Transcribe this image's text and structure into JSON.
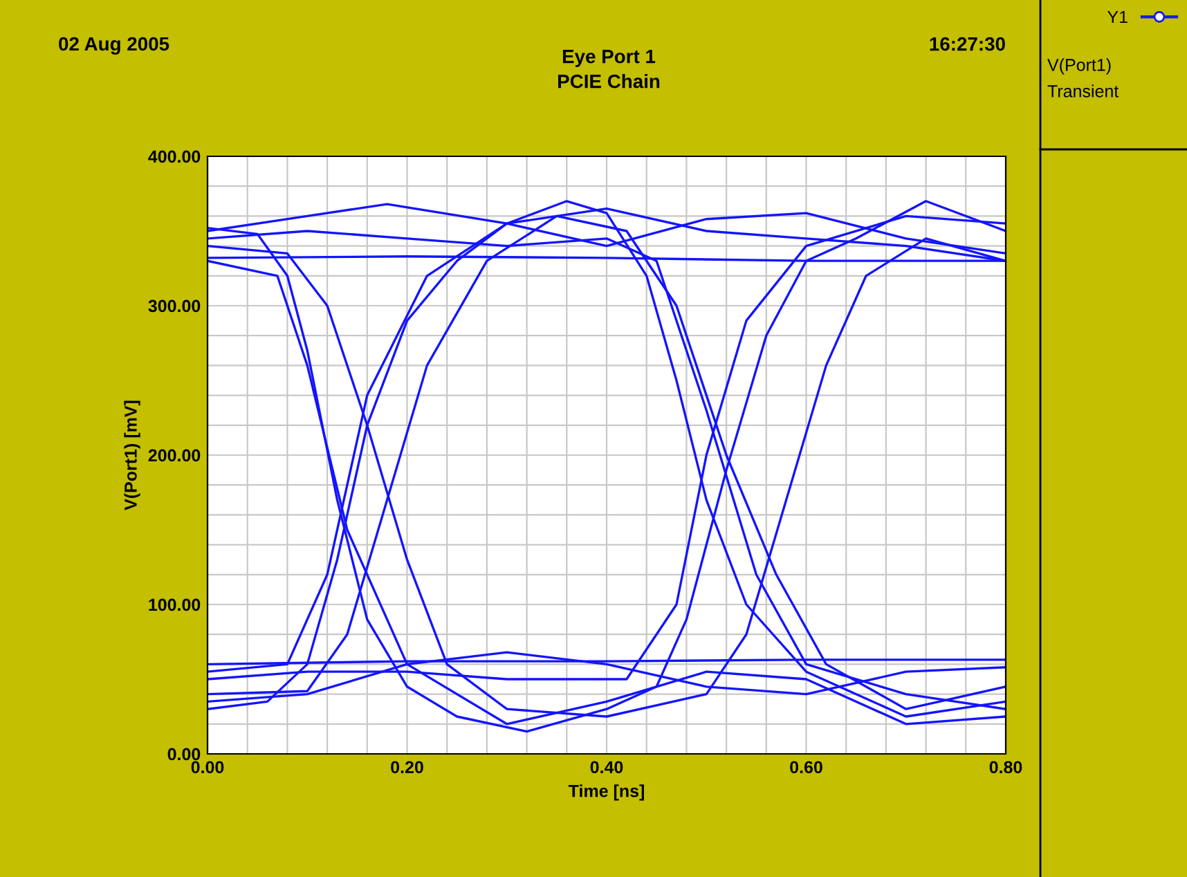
{
  "chart_data": {
    "type": "line",
    "title": "Eye Port 1",
    "subtitle": "PCIE Chain",
    "xlabel": "Time [ns]",
    "ylabel": "V(Port1) [mV]",
    "annotations": [
      "02 Aug 2005",
      "16:27:30",
      "V(Port1)",
      "Transient"
    ],
    "xlim": [
      0,
      0.8
    ],
    "ylim": [
      0,
      400
    ],
    "xticks": [
      {
        "value": 0,
        "label": "0.00"
      },
      {
        "value": 0.04,
        "label": null
      },
      {
        "value": 0.08,
        "label": null
      },
      {
        "value": 0.12,
        "label": null
      },
      {
        "value": 0.16,
        "label": null
      },
      {
        "value": 0.2,
        "label": "0.20"
      },
      {
        "value": 0.24,
        "label": null
      },
      {
        "value": 0.28,
        "label": null
      },
      {
        "value": 0.32,
        "label": null
      },
      {
        "value": 0.36,
        "label": null
      },
      {
        "value": 0.4,
        "label": "0.40"
      },
      {
        "value": 0.44,
        "label": null
      },
      {
        "value": 0.48,
        "label": null
      },
      {
        "value": 0.52,
        "label": null
      },
      {
        "value": 0.56,
        "label": null
      },
      {
        "value": 0.6,
        "label": "0.60"
      },
      {
        "value": 0.64,
        "label": null
      },
      {
        "value": 0.68,
        "label": null
      },
      {
        "value": 0.72,
        "label": null
      },
      {
        "value": 0.76,
        "label": null
      },
      {
        "value": 0.8,
        "label": "0.80"
      }
    ],
    "yticks": [
      {
        "value": 0,
        "label": "0.00"
      },
      {
        "value": 20,
        "label": null
      },
      {
        "value": 40,
        "label": null
      },
      {
        "value": 60,
        "label": null
      },
      {
        "value": 80,
        "label": null
      },
      {
        "value": 100,
        "label": "100.00"
      },
      {
        "value": 120,
        "label": null
      },
      {
        "value": 140,
        "label": null
      },
      {
        "value": 160,
        "label": null
      },
      {
        "value": 180,
        "label": null
      },
      {
        "value": 200,
        "label": "200.00"
      },
      {
        "value": 220,
        "label": null
      },
      {
        "value": 240,
        "label": null
      },
      {
        "value": 260,
        "label": null
      },
      {
        "value": 280,
        "label": null
      },
      {
        "value": 300,
        "label": "300.00"
      },
      {
        "value": 320,
        "label": null
      },
      {
        "value": 340,
        "label": null
      },
      {
        "value": 360,
        "label": null
      },
      {
        "value": 380,
        "label": null
      },
      {
        "value": 400,
        "label": "400.00"
      }
    ],
    "grid": true,
    "legend": "top right",
    "marker": "none",
    "line_style": "solid",
    "series": [
      {
        "name": "Y1",
        "color": "#1414ff",
        "x": [
          0,
          0.2,
          0.4,
          0.6,
          0.8
        ],
        "values": [
          332,
          333,
          332,
          330,
          330
        ]
      },
      {
        "color": "#1414ff",
        "x": [
          0,
          0.1,
          0.18,
          0.3,
          0.4,
          0.5,
          0.6,
          0.7,
          0.8
        ],
        "values": [
          350,
          360,
          368,
          355,
          340,
          358,
          362,
          345,
          335
        ]
      },
      {
        "color": "#1414ff",
        "x": [
          0,
          0.2,
          0.4,
          0.6,
          0.8
        ],
        "values": [
          60,
          62,
          62,
          63,
          63
        ]
      },
      {
        "color": "#1414ff",
        "x": [
          0,
          0.1,
          0.2,
          0.3,
          0.4,
          0.5,
          0.6,
          0.7,
          0.8
        ],
        "values": [
          35,
          40,
          60,
          68,
          60,
          45,
          40,
          55,
          58
        ]
      },
      {
        "color": "#1414ff",
        "x": [
          0,
          0.05,
          0.08,
          0.1,
          0.13,
          0.16,
          0.2,
          0.25,
          0.32,
          0.4,
          0.45,
          0.48,
          0.52,
          0.56,
          0.6,
          0.65,
          0.72,
          0.8
        ],
        "values": [
          352,
          348,
          320,
          270,
          170,
          90,
          45,
          25,
          15,
          30,
          45,
          90,
          190,
          280,
          330,
          345,
          370,
          350
        ]
      },
      {
        "color": "#1414ff",
        "x": [
          0,
          0.06,
          0.1,
          0.13,
          0.16,
          0.2,
          0.25,
          0.3,
          0.36,
          0.4,
          0.44,
          0.47,
          0.5,
          0.54,
          0.6,
          0.7,
          0.8
        ],
        "values": [
          30,
          35,
          60,
          130,
          220,
          290,
          330,
          355,
          370,
          362,
          320,
          250,
          170,
          100,
          55,
          25,
          35
        ]
      },
      {
        "color": "#1414ff",
        "x": [
          0,
          0.1,
          0.14,
          0.18,
          0.22,
          0.28,
          0.35,
          0.42,
          0.47,
          0.52,
          0.57,
          0.62,
          0.7,
          0.8
        ],
        "values": [
          40,
          42,
          80,
          170,
          260,
          330,
          360,
          350,
          300,
          200,
          120,
          60,
          30,
          45
        ]
      },
      {
        "color": "#1414ff",
        "x": [
          0,
          0.08,
          0.12,
          0.16,
          0.2,
          0.24,
          0.3,
          0.4,
          0.5,
          0.54,
          0.58,
          0.62,
          0.66,
          0.72,
          0.8
        ],
        "values": [
          340,
          335,
          300,
          220,
          130,
          60,
          30,
          25,
          40,
          80,
          170,
          260,
          320,
          345,
          330
        ]
      },
      {
        "color": "#1414ff",
        "x": [
          0,
          0.1,
          0.2,
          0.3,
          0.4,
          0.45,
          0.5,
          0.55,
          0.6,
          0.7,
          0.8
        ],
        "values": [
          345,
          350,
          345,
          340,
          345,
          330,
          230,
          120,
          60,
          40,
          30
        ]
      },
      {
        "color": "#1414ff",
        "x": [
          0,
          0.1,
          0.2,
          0.3,
          0.42,
          0.47,
          0.5,
          0.54,
          0.6,
          0.7,
          0.8
        ],
        "values": [
          50,
          55,
          55,
          50,
          50,
          100,
          200,
          290,
          340,
          360,
          355
        ]
      },
      {
        "color": "#1414ff",
        "x": [
          0,
          0.08,
          0.12,
          0.16,
          0.22,
          0.3,
          0.4,
          0.5,
          0.6,
          0.7,
          0.8
        ],
        "values": [
          55,
          60,
          120,
          240,
          320,
          355,
          365,
          350,
          345,
          340,
          330
        ]
      },
      {
        "color": "#1414ff",
        "x": [
          0,
          0.07,
          0.1,
          0.14,
          0.2,
          0.3,
          0.4,
          0.5,
          0.6,
          0.7,
          0.8
        ],
        "values": [
          330,
          320,
          260,
          150,
          60,
          20,
          35,
          55,
          50,
          20,
          25
        ]
      }
    ]
  }
}
